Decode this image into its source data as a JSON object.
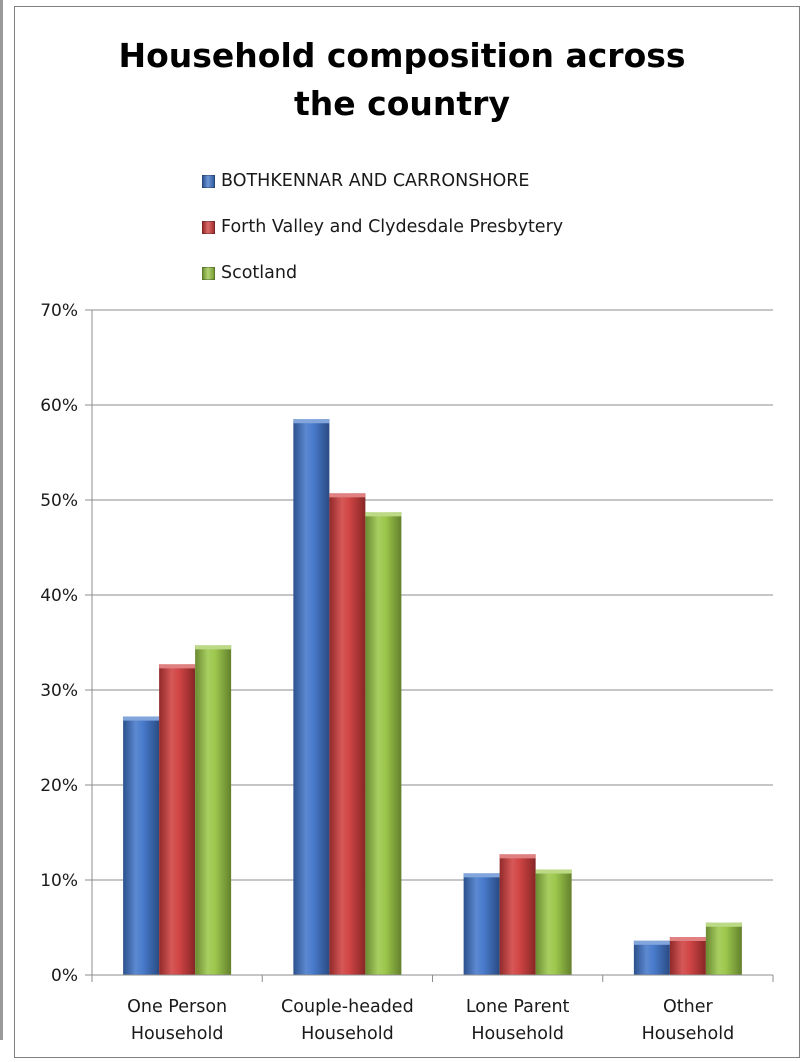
{
  "chart_data": {
    "type": "bar",
    "title_lines": [
      "Household composition across",
      "the country"
    ],
    "categories": [
      [
        "One Person",
        "Household"
      ],
      [
        "Couple-headed",
        "Household"
      ],
      [
        "Lone Parent",
        "Household"
      ],
      [
        "Other",
        "Household"
      ]
    ],
    "series": [
      {
        "name": "BOTHKENNAR AND CARRONSHORE",
        "color": "#3f74c9",
        "values": [
          27.2,
          58.5,
          10.7,
          3.6
        ]
      },
      {
        "name": "Forth Valley and Clydesdale Presbytery",
        "color": "#cf3b3b",
        "values": [
          32.7,
          50.7,
          12.7,
          4.0
        ]
      },
      {
        "name": "Scotland",
        "color": "#98c544",
        "values": [
          34.7,
          48.7,
          11.1,
          5.5
        ]
      }
    ],
    "ylim": [
      0,
      70
    ],
    "yticks": [
      "0%",
      "10%",
      "20%",
      "30%",
      "40%",
      "50%",
      "60%",
      "70%"
    ],
    "grid": true,
    "legend_position": "top"
  }
}
